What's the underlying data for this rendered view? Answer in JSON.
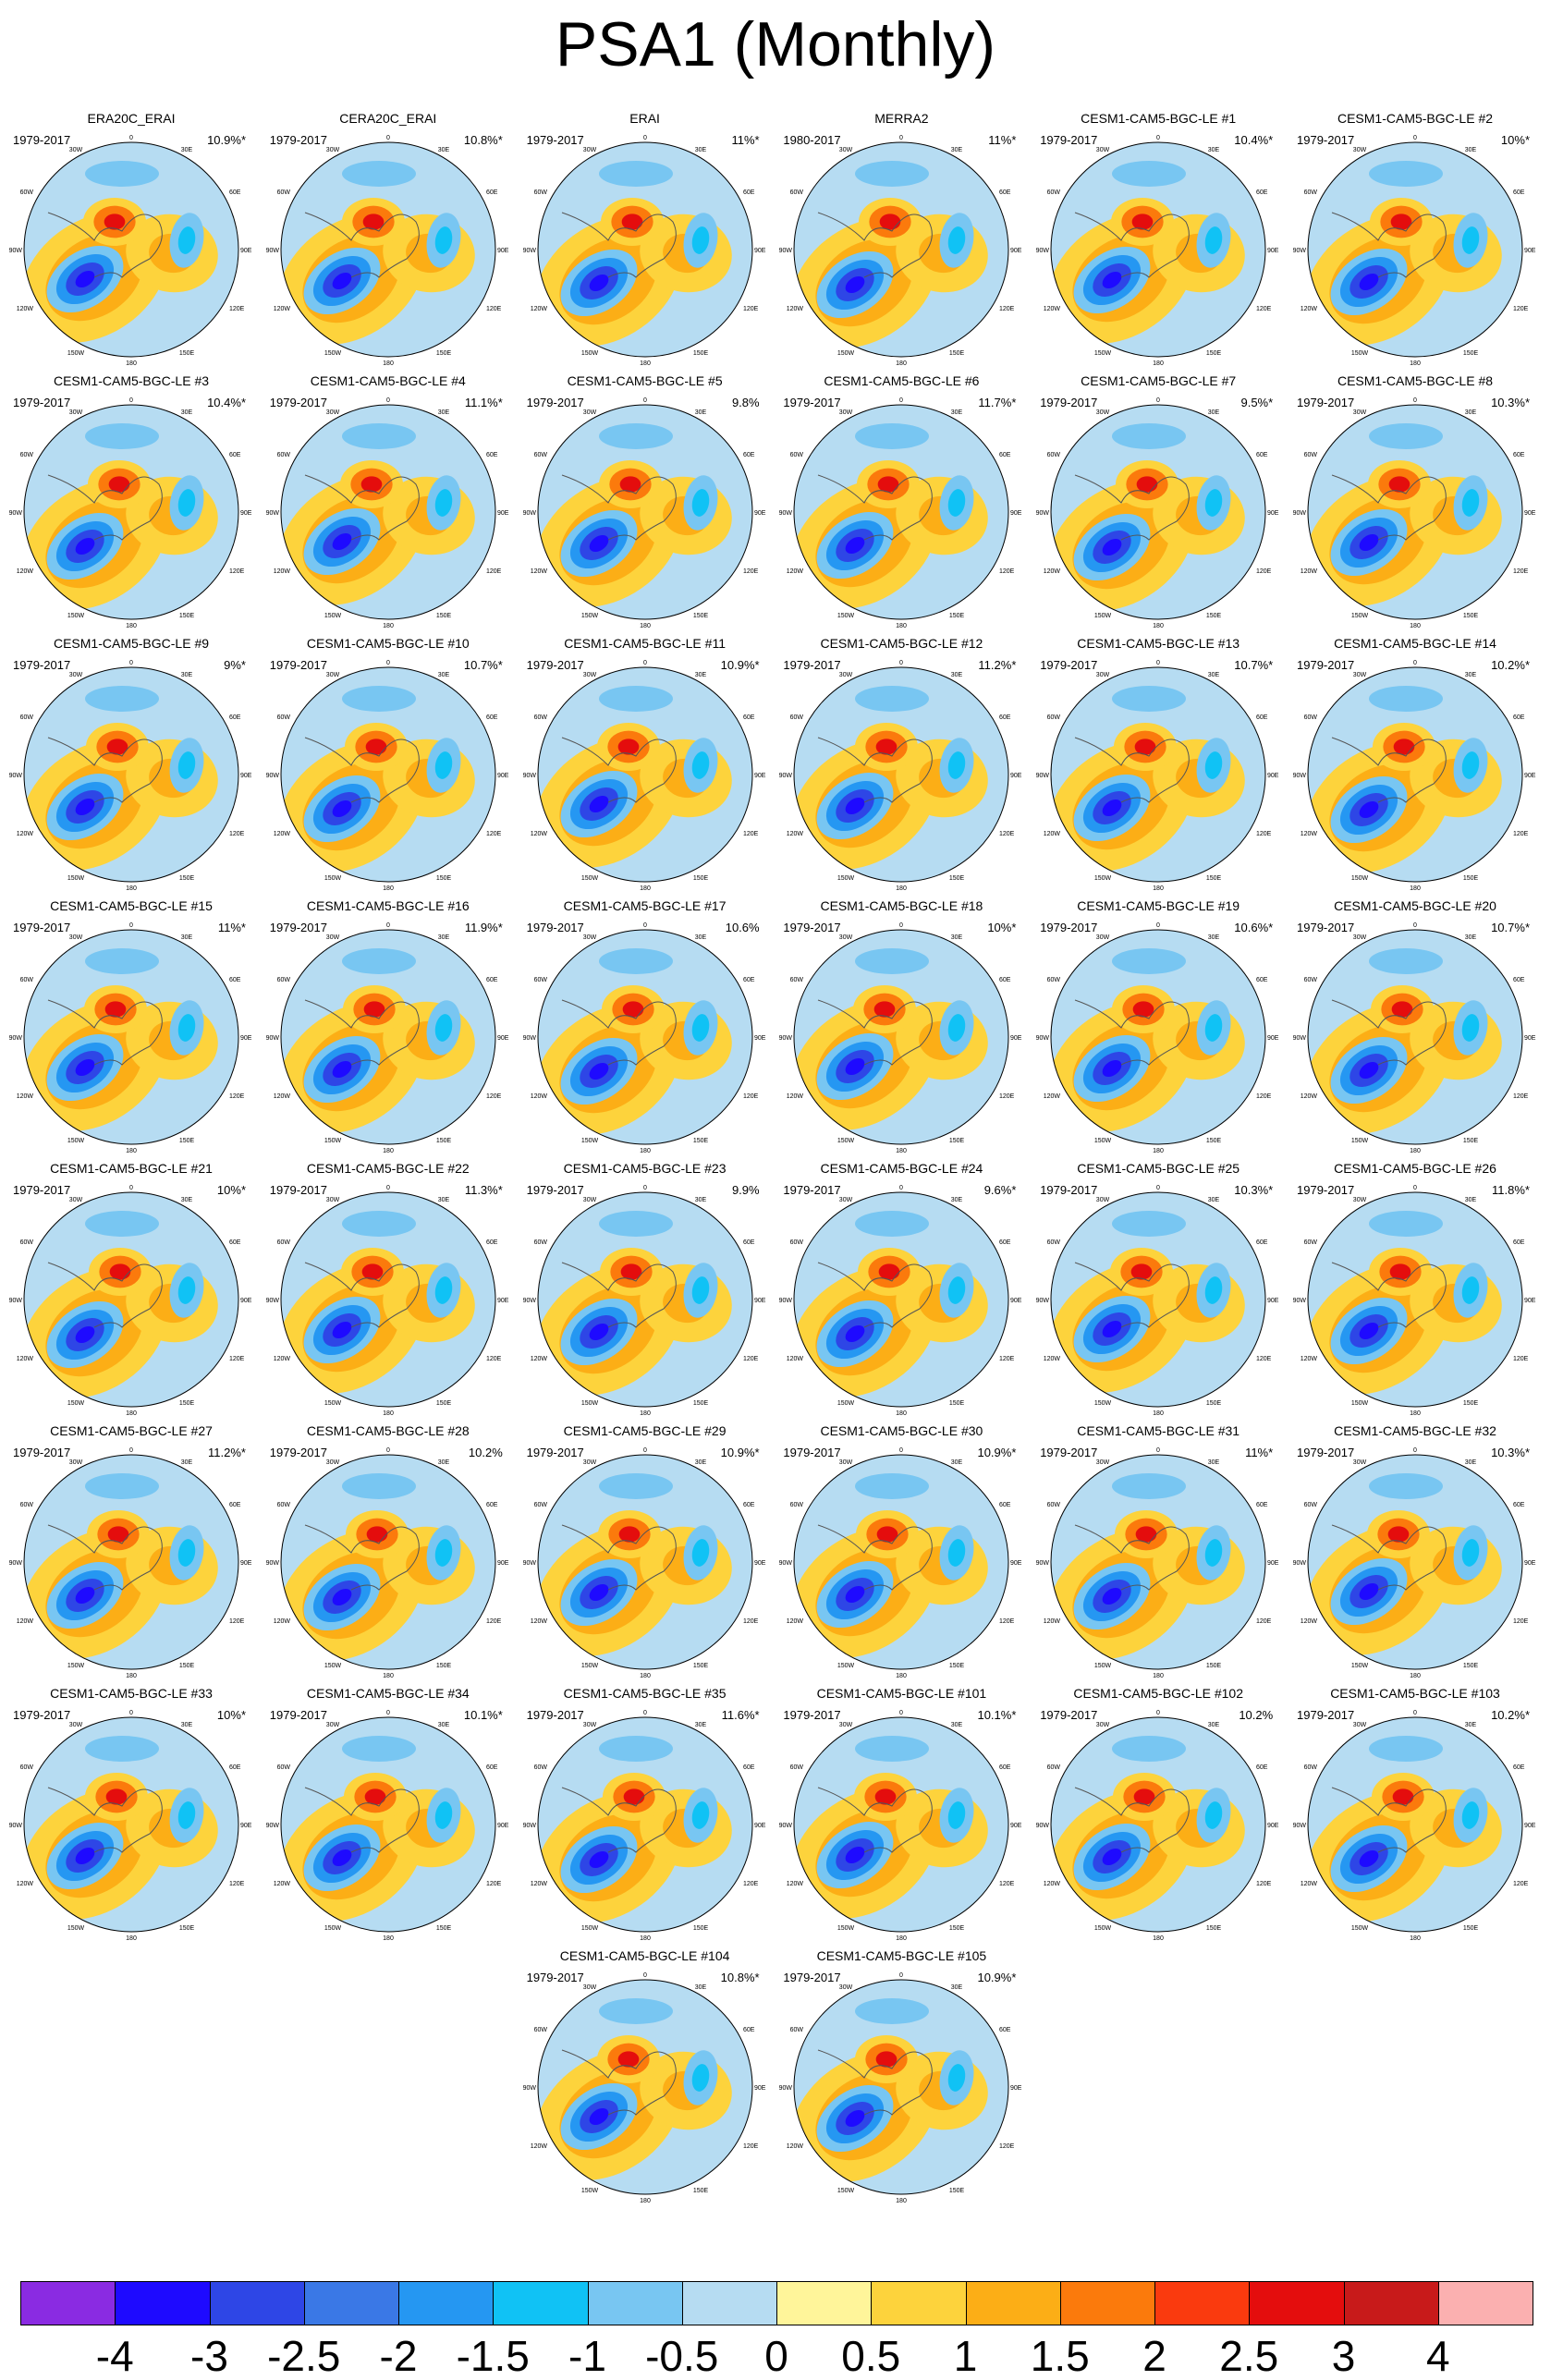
{
  "chart_data": {
    "type": "heatmap",
    "title": "PSA1 (Monthly)",
    "map_labels": {
      "top": "0",
      "bottom": "180",
      "left": "90W",
      "right": "90E",
      "ul": "30W",
      "ur": "30E",
      "ll2": "60W",
      "ur2": "60E",
      "lu": "120W",
      "ru": "120E",
      "bl": "150W",
      "br": "150E"
    },
    "panels": [
      {
        "title": "ERA20C_ERAI",
        "years": "1979-2017",
        "pct": "10.9%*"
      },
      {
        "title": "CERA20C_ERAI",
        "years": "1979-2017",
        "pct": "10.8%*"
      },
      {
        "title": "ERAI",
        "years": "1979-2017",
        "pct": "11%*"
      },
      {
        "title": "MERRA2",
        "years": "1980-2017",
        "pct": "11%*"
      },
      {
        "title": "CESM1-CAM5-BGC-LE #1",
        "years": "1979-2017",
        "pct": "10.4%*"
      },
      {
        "title": "CESM1-CAM5-BGC-LE #2",
        "years": "1979-2017",
        "pct": "10%*"
      },
      {
        "title": "CESM1-CAM5-BGC-LE #3",
        "years": "1979-2017",
        "pct": "10.4%*"
      },
      {
        "title": "CESM1-CAM5-BGC-LE #4",
        "years": "1979-2017",
        "pct": "11.1%*"
      },
      {
        "title": "CESM1-CAM5-BGC-LE #5",
        "years": "1979-2017",
        "pct": "9.8%"
      },
      {
        "title": "CESM1-CAM5-BGC-LE #6",
        "years": "1979-2017",
        "pct": "11.7%*"
      },
      {
        "title": "CESM1-CAM5-BGC-LE #7",
        "years": "1979-2017",
        "pct": "9.5%*"
      },
      {
        "title": "CESM1-CAM5-BGC-LE #8",
        "years": "1979-2017",
        "pct": "10.3%*"
      },
      {
        "title": "CESM1-CAM5-BGC-LE #9",
        "years": "1979-2017",
        "pct": "9%*"
      },
      {
        "title": "CESM1-CAM5-BGC-LE #10",
        "years": "1979-2017",
        "pct": "10.7%*"
      },
      {
        "title": "CESM1-CAM5-BGC-LE #11",
        "years": "1979-2017",
        "pct": "10.9%*"
      },
      {
        "title": "CESM1-CAM5-BGC-LE #12",
        "years": "1979-2017",
        "pct": "11.2%*"
      },
      {
        "title": "CESM1-CAM5-BGC-LE #13",
        "years": "1979-2017",
        "pct": "10.7%*"
      },
      {
        "title": "CESM1-CAM5-BGC-LE #14",
        "years": "1979-2017",
        "pct": "10.2%*"
      },
      {
        "title": "CESM1-CAM5-BGC-LE #15",
        "years": "1979-2017",
        "pct": "11%*"
      },
      {
        "title": "CESM1-CAM5-BGC-LE #16",
        "years": "1979-2017",
        "pct": "11.9%*"
      },
      {
        "title": "CESM1-CAM5-BGC-LE #17",
        "years": "1979-2017",
        "pct": "10.6%"
      },
      {
        "title": "CESM1-CAM5-BGC-LE #18",
        "years": "1979-2017",
        "pct": "10%*"
      },
      {
        "title": "CESM1-CAM5-BGC-LE #19",
        "years": "1979-2017",
        "pct": "10.6%*"
      },
      {
        "title": "CESM1-CAM5-BGC-LE #20",
        "years": "1979-2017",
        "pct": "10.7%*"
      },
      {
        "title": "CESM1-CAM5-BGC-LE #21",
        "years": "1979-2017",
        "pct": "10%*"
      },
      {
        "title": "CESM1-CAM5-BGC-LE #22",
        "years": "1979-2017",
        "pct": "11.3%*"
      },
      {
        "title": "CESM1-CAM5-BGC-LE #23",
        "years": "1979-2017",
        "pct": "9.9%"
      },
      {
        "title": "CESM1-CAM5-BGC-LE #24",
        "years": "1979-2017",
        "pct": "9.6%*"
      },
      {
        "title": "CESM1-CAM5-BGC-LE #25",
        "years": "1979-2017",
        "pct": "10.3%*"
      },
      {
        "title": "CESM1-CAM5-BGC-LE #26",
        "years": "1979-2017",
        "pct": "11.8%*"
      },
      {
        "title": "CESM1-CAM5-BGC-LE #27",
        "years": "1979-2017",
        "pct": "11.2%*"
      },
      {
        "title": "CESM1-CAM5-BGC-LE #28",
        "years": "1979-2017",
        "pct": "10.2%"
      },
      {
        "title": "CESM1-CAM5-BGC-LE #29",
        "years": "1979-2017",
        "pct": "10.9%*"
      },
      {
        "title": "CESM1-CAM5-BGC-LE #30",
        "years": "1979-2017",
        "pct": "10.9%*"
      },
      {
        "title": "CESM1-CAM5-BGC-LE #31",
        "years": "1979-2017",
        "pct": "11%*"
      },
      {
        "title": "CESM1-CAM5-BGC-LE #32",
        "years": "1979-2017",
        "pct": "10.3%*"
      },
      {
        "title": "CESM1-CAM5-BGC-LE #33",
        "years": "1979-2017",
        "pct": "10%*"
      },
      {
        "title": "CESM1-CAM5-BGC-LE #34",
        "years": "1979-2017",
        "pct": "10.1%*"
      },
      {
        "title": "CESM1-CAM5-BGC-LE #35",
        "years": "1979-2017",
        "pct": "11.6%*"
      },
      {
        "title": "CESM1-CAM5-BGC-LE #101",
        "years": "1979-2017",
        "pct": "10.1%*"
      },
      {
        "title": "CESM1-CAM5-BGC-LE #102",
        "years": "1979-2017",
        "pct": "10.2%"
      },
      {
        "title": "CESM1-CAM5-BGC-LE #103",
        "years": "1979-2017",
        "pct": "10.2%*"
      },
      {
        "title": "CESM1-CAM5-BGC-LE #104",
        "years": "1979-2017",
        "pct": "10.8%*"
      },
      {
        "title": "CESM1-CAM5-BGC-LE #105",
        "years": "1979-2017",
        "pct": "10.9%*"
      }
    ],
    "colorbar": {
      "labels": [
        "-4",
        "-3",
        "-2.5",
        "-2",
        "-1.5",
        "-1",
        "-0.5",
        "0",
        "0.5",
        "1",
        "1.5",
        "2",
        "2.5",
        "3",
        "4"
      ],
      "colors": [
        "#8a2be2",
        "#1e0aff",
        "#2e46e6",
        "#3a78e6",
        "#2597f2",
        "#10c2f5",
        "#78c6f2",
        "#b6dcf2",
        "#fff59a",
        "#fdd33c",
        "#fcae16",
        "#fb7a0c",
        "#fa3a0e",
        "#e40d0d",
        "#c81a1a",
        "#fbb0b0"
      ]
    }
  }
}
